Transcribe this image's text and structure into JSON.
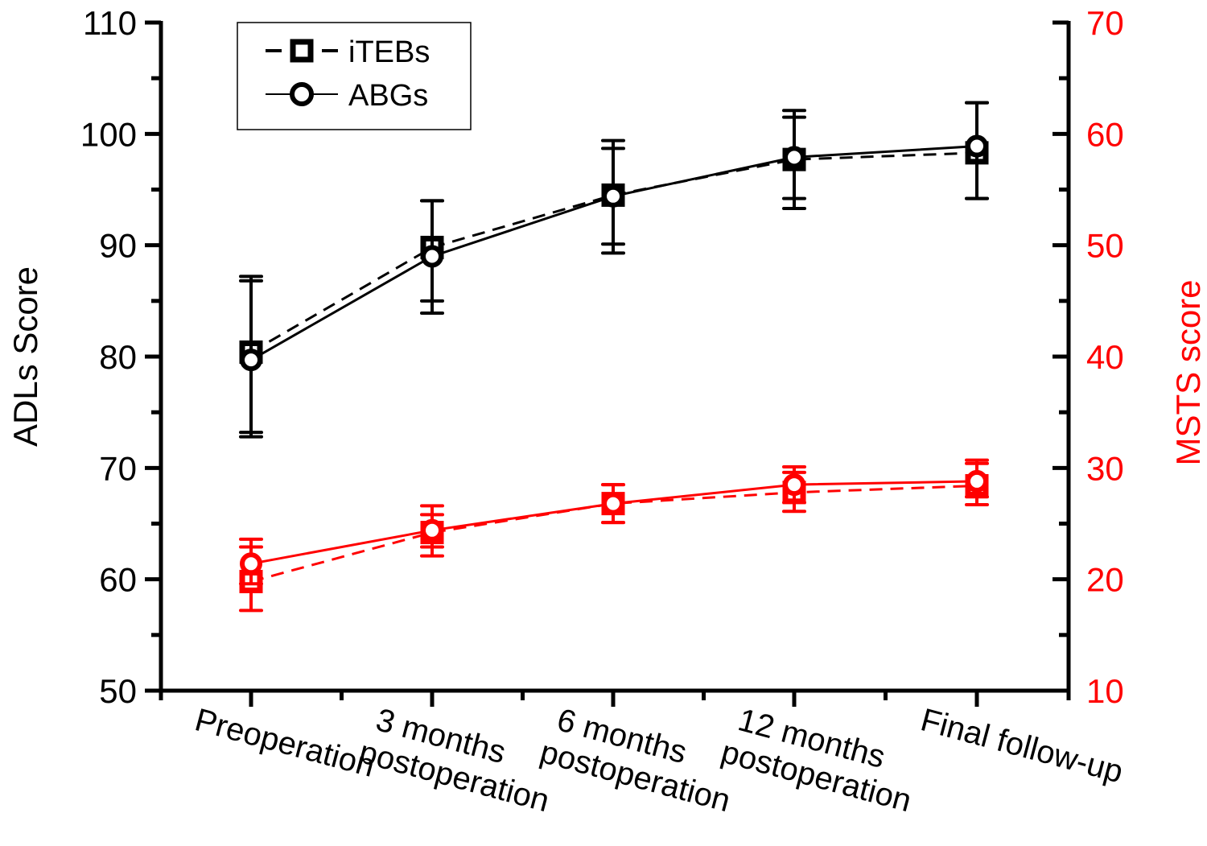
{
  "chart_data": {
    "type": "line",
    "title": "",
    "categories": [
      "Preoperation",
      "3 months postoperation",
      "6 months postoperation",
      "12 months postoperation",
      "Final follow-up"
    ],
    "category_labels": [
      [
        "Preoperation"
      ],
      [
        "3 months",
        "postoperation"
      ],
      [
        "6 months",
        "postoperation"
      ],
      [
        "12 months",
        "postoperation"
      ],
      [
        "Final follow-up"
      ]
    ],
    "xlabel": "",
    "left_axis": {
      "label": "ADLs Score",
      "ylim": [
        50,
        110
      ],
      "ticks": [
        50,
        60,
        70,
        80,
        90,
        100,
        110
      ],
      "color": "#000000"
    },
    "right_axis": {
      "label": "MSTS score",
      "ylim": [
        10,
        70
      ],
      "ticks": [
        10,
        20,
        30,
        40,
        50,
        60,
        70
      ],
      "color": "#ff0000"
    },
    "grid": false,
    "legend": {
      "position": "top-left",
      "entries": [
        {
          "name": "iTEBs",
          "marker": "square",
          "line": "dashed"
        },
        {
          "name": "ABGs",
          "marker": "circle",
          "line": "solid"
        }
      ]
    },
    "series": [
      {
        "name": "iTEBs",
        "metric": "ADLs",
        "axis": "left",
        "color": "#000000",
        "marker": "square",
        "line": "dashed",
        "values": [
          80.4,
          89.8,
          94.5,
          97.7,
          98.3
        ],
        "error_low": [
          73.2,
          85.0,
          90.1,
          94.2,
          94.2
        ],
        "error_high": [
          87.2,
          94.0,
          99.4,
          101.5,
          102.8
        ]
      },
      {
        "name": "ABGs",
        "metric": "ADLs",
        "axis": "left",
        "color": "#000000",
        "marker": "circle",
        "line": "solid",
        "values": [
          79.7,
          89.0,
          94.4,
          97.9,
          98.9
        ],
        "error_low": [
          72.8,
          83.9,
          89.3,
          93.3,
          94.2
        ],
        "error_high": [
          86.8,
          94.0,
          98.7,
          102.1,
          102.8
        ]
      },
      {
        "name": "iTEBs",
        "metric": "MSTS",
        "axis": "right",
        "color": "#ff0000",
        "marker": "square",
        "line": "dashed",
        "values": [
          19.8,
          24.2,
          26.8,
          27.8,
          28.4
        ],
        "error_low": [
          17.2,
          22.1,
          25.1,
          26.1,
          26.7
        ],
        "error_high": [
          22.9,
          25.8,
          28.5,
          29.6,
          30.4
        ]
      },
      {
        "name": "ABGs",
        "metric": "MSTS",
        "axis": "right",
        "color": "#ff0000",
        "marker": "circle",
        "line": "solid",
        "values": [
          21.4,
          24.4,
          26.8,
          28.5,
          28.8
        ],
        "error_low": [
          19.6,
          22.9,
          25.1,
          26.9,
          27.4
        ],
        "error_high": [
          23.6,
          26.6,
          28.5,
          30.1,
          30.7
        ]
      }
    ]
  }
}
